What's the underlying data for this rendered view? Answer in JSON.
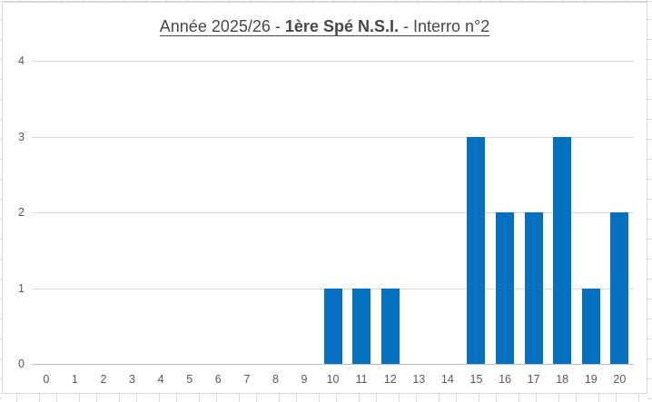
{
  "chart": {
    "title": {
      "prefix": "Année 2025/26 - ",
      "bold": "1ère Spé N.S.I.",
      "suffix": " - Interro n°2"
    }
  },
  "chart_data": {
    "type": "bar",
    "title": "Année 2025/26 - 1ère Spé N.S.I. - Interro n°2",
    "categories": [
      0,
      1,
      2,
      3,
      4,
      5,
      6,
      7,
      8,
      9,
      10,
      11,
      12,
      13,
      14,
      15,
      16,
      17,
      18,
      19,
      20
    ],
    "values": [
      0,
      0,
      0,
      0,
      0,
      0,
      0,
      0,
      0,
      0,
      1,
      1,
      1,
      0,
      0,
      3,
      2,
      2,
      3,
      1,
      2
    ],
    "xlabel": "",
    "ylabel": "",
    "ylim": [
      0,
      4
    ],
    "yticks": [
      0,
      1,
      2,
      3,
      4
    ],
    "grid": true,
    "legend": false,
    "bar_color": "#0670c0",
    "gridline_color": "#d9d9d9",
    "axis_line_color": "#bfbfbf",
    "tick_label_color": "#595959",
    "title_color": "#474747"
  }
}
